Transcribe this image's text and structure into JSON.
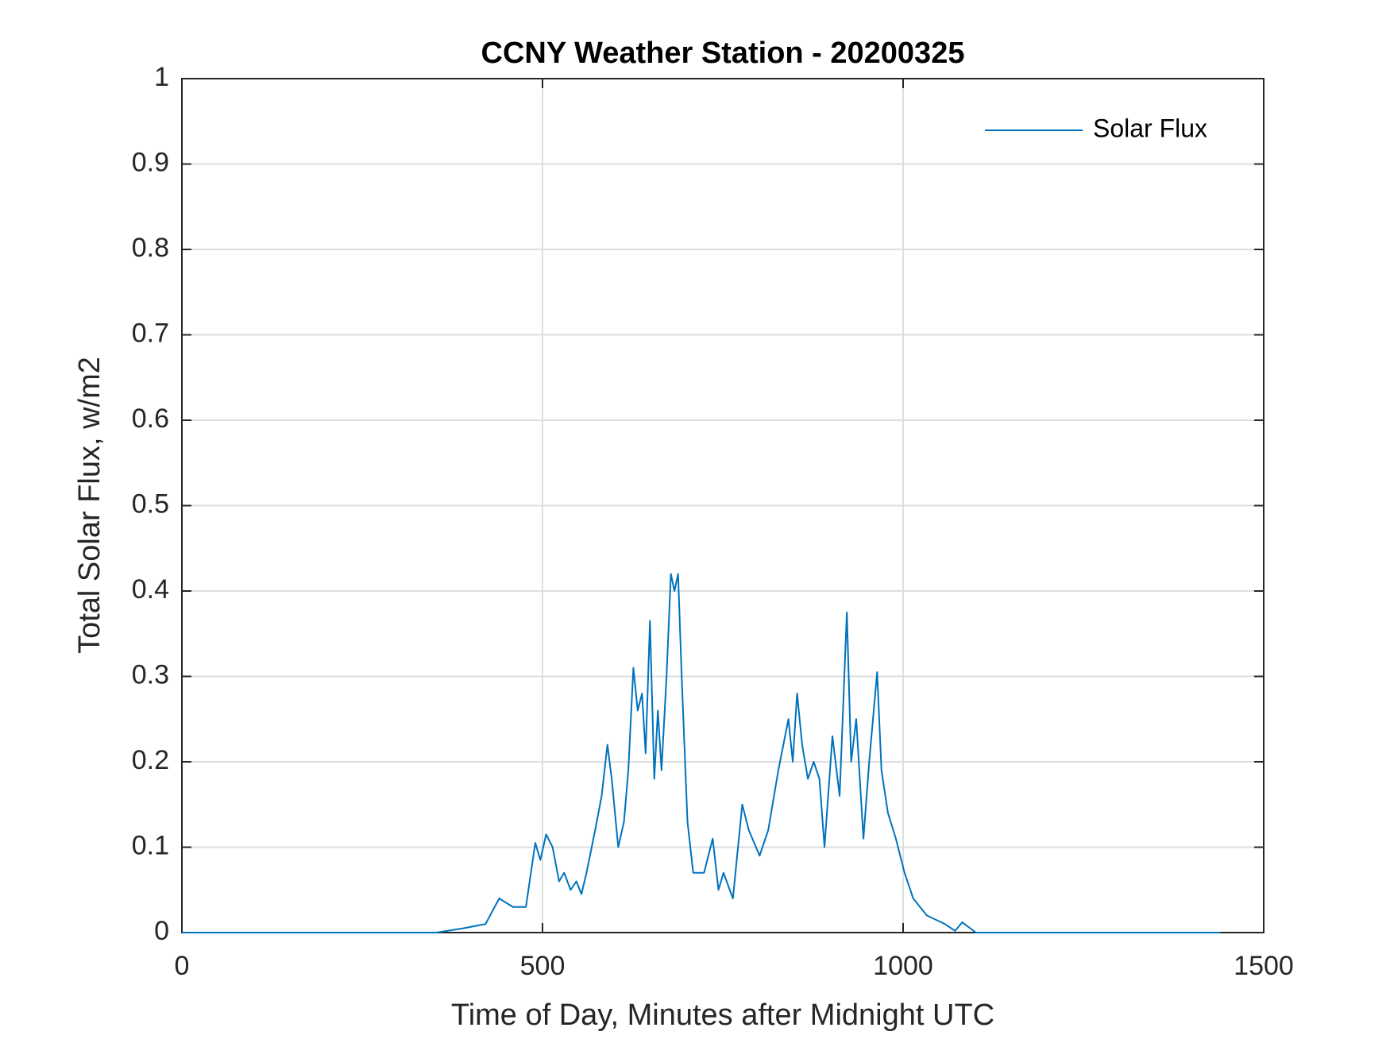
{
  "chart_data": {
    "type": "line",
    "title": "CCNY Weather Station - 20200325",
    "x_label": "Time of Day, Minutes after Midnight UTC",
    "y_label": "Total Solar Flux, w/m2",
    "x": [
      0,
      353,
      390,
      421,
      440,
      459,
      477,
      490,
      497,
      505,
      514,
      523,
      530,
      539,
      547,
      554,
      561,
      573,
      582,
      590,
      596,
      605,
      613,
      619,
      626,
      632,
      638,
      643,
      649,
      655,
      660,
      665,
      672,
      678,
      683,
      688,
      693,
      701,
      709,
      724,
      736,
      744,
      751,
      764,
      777,
      786,
      801,
      813,
      827,
      841,
      847,
      853,
      860,
      868,
      876,
      884,
      891,
      902,
      912,
      922,
      928,
      935,
      945,
      953,
      964,
      970,
      979,
      990,
      1002,
      1014,
      1033,
      1058,
      1072,
      1082,
      1101,
      1440
    ],
    "series": [
      {
        "name": "Solar Flux",
        "color": "#0072bd",
        "values": [
          0,
          0,
          0.005,
          0.01,
          0.04,
          0.03,
          0.03,
          0.105,
          0.085,
          0.115,
          0.1,
          0.06,
          0.07,
          0.05,
          0.06,
          0.045,
          0.07,
          0.12,
          0.16,
          0.22,
          0.18,
          0.1,
          0.13,
          0.19,
          0.31,
          0.26,
          0.28,
          0.21,
          0.365,
          0.18,
          0.26,
          0.19,
          0.3,
          0.42,
          0.4,
          0.42,
          0.3,
          0.13,
          0.07,
          0.07,
          0.11,
          0.05,
          0.07,
          0.04,
          0.15,
          0.12,
          0.09,
          0.12,
          0.19,
          0.25,
          0.2,
          0.28,
          0.22,
          0.18,
          0.2,
          0.18,
          0.1,
          0.23,
          0.16,
          0.375,
          0.2,
          0.25,
          0.11,
          0.2,
          0.305,
          0.19,
          0.14,
          0.11,
          0.07,
          0.04,
          0.02,
          0.01,
          0.002,
          0.012,
          0,
          0
        ]
      }
    ],
    "xlim": [
      0,
      1500
    ],
    "xticks": [
      0,
      500,
      1000,
      1500
    ],
    "ylim": [
      0,
      1
    ],
    "yticks": [
      0,
      0.1,
      0.2,
      0.3,
      0.4,
      0.5,
      0.6,
      0.7,
      0.8,
      0.9,
      1
    ],
    "grid": true,
    "legend": "upper right"
  }
}
